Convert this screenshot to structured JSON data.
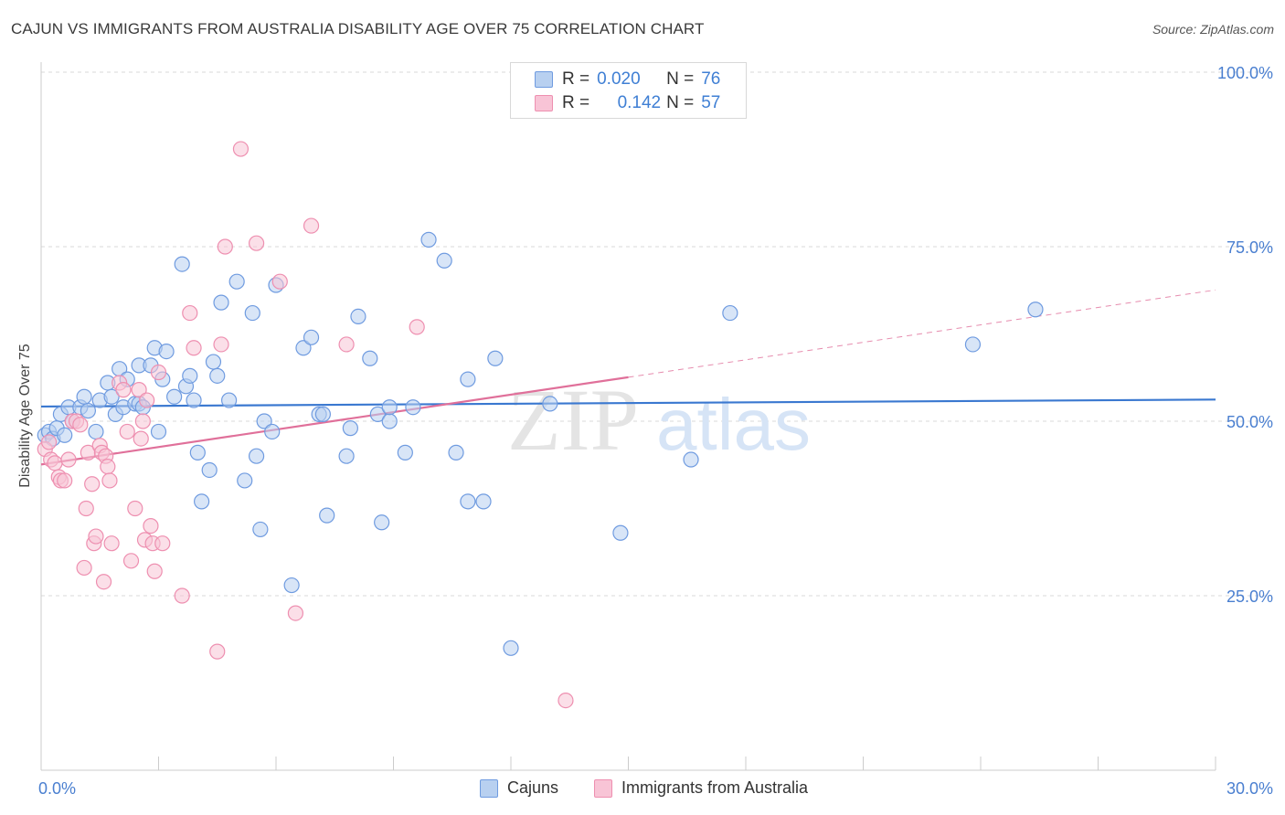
{
  "title": "CAJUN VS IMMIGRANTS FROM AUSTRALIA DISABILITY AGE OVER 75 CORRELATION CHART",
  "source": "Source: ZipAtlas.com",
  "watermark": {
    "zip": "ZIP",
    "atlas": "atlas"
  },
  "colors": {
    "blue": "#3a78d0",
    "blue_fill": "#b8d0f0",
    "blue_stroke": "#6f9be0",
    "pink": "#e0709a",
    "pink_fill": "#f8c4d6",
    "pink_stroke": "#ee8fb0",
    "grid": "#d8d8d8",
    "axis_text": "#4a7fd0"
  },
  "legend_top": {
    "rows": [
      {
        "r_label": "R =",
        "r_value": "0.020",
        "n_label": "N =",
        "n_value": "76"
      },
      {
        "r_label": "R =",
        "r_value": "0.142",
        "n_label": "N =",
        "n_value": "57"
      }
    ]
  },
  "legend_bottom": {
    "items": [
      "Cajuns",
      "Immigrants from Australia"
    ]
  },
  "chart_data": {
    "type": "scatter",
    "title": "CAJUN VS IMMIGRANTS FROM AUSTRALIA DISABILITY AGE OVER 75 CORRELATION CHART",
    "xlabel": "",
    "ylabel": "Disability Age Over 75",
    "xlim": [
      0,
      30
    ],
    "ylim": [
      0,
      100
    ],
    "x_tick_labels": [
      "0.0%",
      "30.0%"
    ],
    "y_ticks": [
      25,
      50,
      75,
      100
    ],
    "y_tick_labels": [
      "25.0%",
      "50.0%",
      "75.0%",
      "100.0%"
    ],
    "series": [
      {
        "name": "Cajuns",
        "color": "#3a78d0",
        "trend": {
          "x": [
            0,
            30
          ],
          "y": [
            52.1,
            53.1
          ],
          "dashed_from": null
        },
        "points": [
          [
            0.1,
            48.0
          ],
          [
            0.2,
            48.5
          ],
          [
            0.3,
            47.5
          ],
          [
            0.4,
            49.0
          ],
          [
            0.5,
            51.0
          ],
          [
            0.6,
            48.0
          ],
          [
            0.7,
            52.0
          ],
          [
            0.8,
            50.0
          ],
          [
            1.0,
            52.0
          ],
          [
            1.1,
            53.5
          ],
          [
            1.2,
            51.5
          ],
          [
            1.4,
            48.5
          ],
          [
            1.5,
            53.0
          ],
          [
            1.7,
            55.5
          ],
          [
            1.8,
            53.5
          ],
          [
            1.9,
            51.0
          ],
          [
            2.0,
            57.5
          ],
          [
            2.1,
            52.0
          ],
          [
            2.2,
            56.0
          ],
          [
            2.4,
            52.5
          ],
          [
            2.5,
            52.5
          ],
          [
            2.5,
            58.0
          ],
          [
            2.6,
            52.0
          ],
          [
            2.8,
            58.0
          ],
          [
            2.9,
            60.5
          ],
          [
            3.0,
            48.5
          ],
          [
            3.1,
            56.0
          ],
          [
            3.2,
            60.0
          ],
          [
            3.4,
            53.5
          ],
          [
            3.6,
            72.5
          ],
          [
            3.7,
            55.0
          ],
          [
            3.8,
            56.5
          ],
          [
            3.9,
            53.0
          ],
          [
            4.0,
            45.5
          ],
          [
            4.1,
            38.5
          ],
          [
            4.3,
            43.0
          ],
          [
            4.4,
            58.5
          ],
          [
            4.5,
            56.5
          ],
          [
            4.6,
            67.0
          ],
          [
            4.8,
            53.0
          ],
          [
            5.0,
            70.0
          ],
          [
            5.2,
            41.5
          ],
          [
            5.4,
            65.5
          ],
          [
            5.5,
            45.0
          ],
          [
            5.6,
            34.5
          ],
          [
            5.7,
            50.0
          ],
          [
            5.9,
            48.5
          ],
          [
            6.0,
            69.5
          ],
          [
            6.4,
            26.5
          ],
          [
            6.7,
            60.5
          ],
          [
            6.9,
            62.0
          ],
          [
            7.1,
            51.0
          ],
          [
            7.2,
            51.0
          ],
          [
            7.3,
            36.5
          ],
          [
            7.8,
            45.0
          ],
          [
            7.9,
            49.0
          ],
          [
            8.1,
            65.0
          ],
          [
            8.4,
            59.0
          ],
          [
            8.6,
            51.0
          ],
          [
            8.7,
            35.5
          ],
          [
            8.9,
            50.0
          ],
          [
            8.9,
            52.0
          ],
          [
            9.3,
            45.5
          ],
          [
            9.5,
            52.0
          ],
          [
            9.9,
            76.0
          ],
          [
            10.3,
            73.0
          ],
          [
            10.6,
            45.5
          ],
          [
            10.9,
            56.0
          ],
          [
            10.9,
            38.5
          ],
          [
            11.3,
            38.5
          ],
          [
            11.6,
            59.0
          ],
          [
            12.0,
            17.5
          ],
          [
            13.0,
            52.5
          ],
          [
            14.8,
            34.0
          ],
          [
            16.6,
            44.5
          ],
          [
            17.6,
            65.5
          ],
          [
            23.8,
            61.0
          ],
          [
            25.4,
            66.0
          ]
        ]
      },
      {
        "name": "Immigrants from Australia",
        "color": "#e0709a",
        "trend": {
          "x": [
            0,
            30
          ],
          "y": [
            43.8,
            68.8
          ],
          "dashed_from": 15
        },
        "points": [
          [
            0.1,
            46.0
          ],
          [
            0.2,
            47.0
          ],
          [
            0.25,
            44.5
          ],
          [
            0.35,
            44.0
          ],
          [
            0.45,
            42.0
          ],
          [
            0.5,
            41.5
          ],
          [
            0.6,
            41.5
          ],
          [
            0.7,
            44.5
          ],
          [
            0.8,
            50.0
          ],
          [
            0.9,
            50.0
          ],
          [
            1.0,
            49.5
          ],
          [
            1.1,
            29.0
          ],
          [
            1.15,
            37.5
          ],
          [
            1.2,
            45.5
          ],
          [
            1.3,
            41.0
          ],
          [
            1.35,
            32.5
          ],
          [
            1.4,
            33.5
          ],
          [
            1.5,
            46.5
          ],
          [
            1.55,
            45.5
          ],
          [
            1.6,
            27.0
          ],
          [
            1.65,
            45.0
          ],
          [
            1.7,
            43.5
          ],
          [
            1.75,
            41.5
          ],
          [
            1.8,
            32.5
          ],
          [
            2.0,
            55.5
          ],
          [
            2.1,
            54.5
          ],
          [
            2.2,
            48.5
          ],
          [
            2.3,
            30.0
          ],
          [
            2.4,
            37.5
          ],
          [
            2.5,
            54.5
          ],
          [
            2.55,
            47.5
          ],
          [
            2.6,
            50.0
          ],
          [
            2.65,
            33.0
          ],
          [
            2.7,
            53.0
          ],
          [
            2.8,
            35.0
          ],
          [
            2.85,
            32.5
          ],
          [
            2.9,
            28.5
          ],
          [
            3.0,
            57.0
          ],
          [
            3.1,
            32.5
          ],
          [
            3.6,
            25.0
          ],
          [
            3.8,
            65.5
          ],
          [
            3.9,
            60.5
          ],
          [
            4.5,
            17.0
          ],
          [
            4.6,
            61.0
          ],
          [
            4.7,
            75.0
          ],
          [
            5.1,
            89.0
          ],
          [
            5.5,
            75.5
          ],
          [
            6.1,
            70.0
          ],
          [
            6.5,
            22.5
          ],
          [
            6.9,
            78.0
          ],
          [
            7.8,
            61.0
          ],
          [
            9.6,
            63.5
          ],
          [
            13.4,
            10.0
          ]
        ]
      }
    ]
  }
}
